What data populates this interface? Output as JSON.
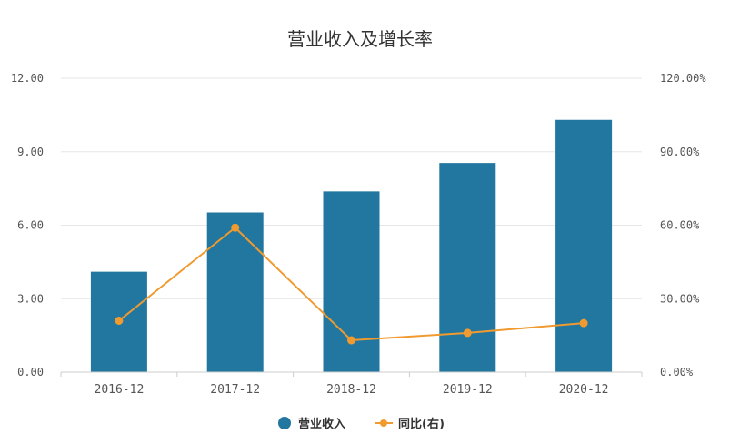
{
  "chart_data": {
    "type": "bar",
    "title": "营业收入及增长率",
    "categories": [
      "2016-12",
      "2017-12",
      "2018-12",
      "2019-12",
      "2020-12"
    ],
    "series": [
      {
        "name": "营业收入",
        "type": "bar",
        "axis": "left",
        "color": "#21779f",
        "values": [
          4.1,
          6.52,
          7.38,
          8.54,
          10.3
        ]
      },
      {
        "name": "同比(右)",
        "type": "line",
        "axis": "right",
        "color": "#f09a2f",
        "values": [
          21.0,
          59.0,
          13.0,
          16.0,
          20.0
        ]
      }
    ],
    "y_left": {
      "min": 0,
      "max": 12,
      "ticks": [
        "0.00",
        "3.00",
        "6.00",
        "9.00",
        "12.00"
      ]
    },
    "y_right": {
      "min": 0,
      "max": 120,
      "ticks": [
        "0.00%",
        "30.00%",
        "60.00%",
        "90.00%",
        "120.00%"
      ]
    },
    "grid": true,
    "legend_position": "bottom-center"
  }
}
